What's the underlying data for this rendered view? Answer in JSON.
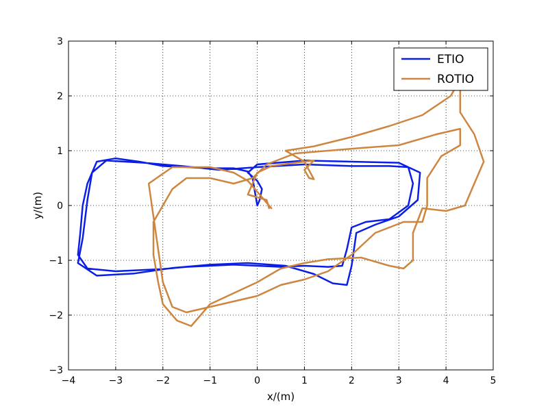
{
  "chart_data": {
    "type": "line",
    "xlabel": "x/(m)",
    "ylabel": "y/(m)",
    "xlim": [
      -4,
      5
    ],
    "ylim": [
      -3,
      3
    ],
    "x_ticks": [
      -4,
      -3,
      -2,
      -1,
      0,
      1,
      2,
      3,
      4,
      5
    ],
    "y_ticks": [
      -3,
      -2,
      -1,
      0,
      1,
      2,
      3
    ],
    "x_tick_labels": [
      "−4",
      "−3",
      "−2",
      "−1",
      "0",
      "1",
      "2",
      "3",
      "4",
      "5"
    ],
    "y_tick_labels": [
      "−3",
      "−2",
      "−1",
      "0",
      "1",
      "2",
      "3"
    ],
    "grid": true,
    "legend_position": "top-right",
    "series": [
      {
        "name": "ETIO",
        "color": "#0a1ee6",
        "points": [
          [
            0.0,
            0.0
          ],
          [
            -0.05,
            0.25
          ],
          [
            -0.1,
            0.5
          ],
          [
            -0.2,
            0.62
          ],
          [
            -0.5,
            0.68
          ],
          [
            -1.0,
            0.68
          ],
          [
            -1.5,
            0.7
          ],
          [
            -2.0,
            0.72
          ],
          [
            -2.5,
            0.8
          ],
          [
            -3.0,
            0.86
          ],
          [
            -3.4,
            0.8
          ],
          [
            -3.6,
            0.4
          ],
          [
            -3.7,
            0.0
          ],
          [
            -3.75,
            -0.5
          ],
          [
            -3.8,
            -0.9
          ],
          [
            -3.6,
            -1.15
          ],
          [
            -3.0,
            -1.2
          ],
          [
            -2.5,
            -1.18
          ],
          [
            -2.0,
            -1.16
          ],
          [
            -1.5,
            -1.12
          ],
          [
            -1.0,
            -1.1
          ],
          [
            -0.5,
            -1.08
          ],
          [
            0.0,
            -1.1
          ],
          [
            0.5,
            -1.12
          ],
          [
            1.0,
            -1.1
          ],
          [
            1.5,
            -1.12
          ],
          [
            1.8,
            -1.1
          ],
          [
            1.9,
            -0.8
          ],
          [
            2.0,
            -0.4
          ],
          [
            2.3,
            -0.3
          ],
          [
            2.8,
            -0.25
          ],
          [
            3.2,
            0.0
          ],
          [
            3.3,
            0.4
          ],
          [
            3.2,
            0.7
          ],
          [
            2.8,
            0.72
          ],
          [
            2.0,
            0.72
          ],
          [
            1.0,
            0.75
          ],
          [
            0.0,
            0.7
          ],
          [
            -0.8,
            0.65
          ],
          [
            -1.6,
            0.72
          ],
          [
            -2.4,
            0.78
          ],
          [
            -3.2,
            0.82
          ],
          [
            -3.5,
            0.6
          ],
          [
            -3.6,
            0.1
          ],
          [
            -3.7,
            -0.6
          ],
          [
            -3.8,
            -1.05
          ],
          [
            -3.4,
            -1.28
          ],
          [
            -2.6,
            -1.24
          ],
          [
            -1.8,
            -1.14
          ],
          [
            -1.0,
            -1.08
          ],
          [
            -0.2,
            -1.05
          ],
          [
            0.6,
            -1.1
          ],
          [
            1.2,
            -1.25
          ],
          [
            1.6,
            -1.42
          ],
          [
            1.9,
            -1.45
          ],
          [
            2.0,
            -1.1
          ],
          [
            2.1,
            -0.5
          ],
          [
            2.5,
            -0.35
          ],
          [
            3.0,
            -0.2
          ],
          [
            3.4,
            0.1
          ],
          [
            3.45,
            0.6
          ],
          [
            3.0,
            0.78
          ],
          [
            2.0,
            0.8
          ],
          [
            1.0,
            0.82
          ],
          [
            0.0,
            0.75
          ],
          [
            -0.2,
            0.6
          ],
          [
            0.0,
            0.45
          ],
          [
            0.1,
            0.3
          ],
          [
            0.05,
            0.1
          ],
          [
            0.0,
            0.0
          ]
        ]
      },
      {
        "name": "ROTIO",
        "color": "#cd853f",
        "points": [
          [
            0.25,
            -0.05
          ],
          [
            0.2,
            0.1
          ],
          [
            0.0,
            0.15
          ],
          [
            -0.2,
            0.2
          ],
          [
            -0.1,
            0.4
          ],
          [
            0.0,
            0.6
          ],
          [
            0.3,
            0.72
          ],
          [
            0.8,
            0.78
          ],
          [
            1.2,
            0.82
          ],
          [
            1.0,
            0.65
          ],
          [
            1.1,
            0.5
          ],
          [
            1.2,
            0.48
          ],
          [
            1.0,
            0.8
          ],
          [
            0.6,
            1.0
          ],
          [
            1.2,
            1.08
          ],
          [
            2.0,
            1.25
          ],
          [
            2.8,
            1.45
          ],
          [
            3.5,
            1.65
          ],
          [
            4.1,
            2.0
          ],
          [
            4.3,
            2.3
          ],
          [
            4.3,
            1.7
          ],
          [
            4.6,
            1.3
          ],
          [
            4.8,
            0.8
          ],
          [
            4.6,
            0.4
          ],
          [
            4.4,
            0.0
          ],
          [
            4.0,
            -0.1
          ],
          [
            3.5,
            -0.05
          ],
          [
            3.3,
            -0.5
          ],
          [
            3.3,
            -1.0
          ],
          [
            3.1,
            -1.15
          ],
          [
            2.8,
            -1.1
          ],
          [
            2.2,
            -0.95
          ],
          [
            1.5,
            -0.98
          ],
          [
            1.0,
            -1.05
          ],
          [
            0.5,
            -1.15
          ],
          [
            0.0,
            -1.4
          ],
          [
            -0.5,
            -1.6
          ],
          [
            -1.0,
            -1.8
          ],
          [
            -1.4,
            -2.2
          ],
          [
            -1.7,
            -2.1
          ],
          [
            -2.0,
            -1.8
          ],
          [
            -2.1,
            -1.4
          ],
          [
            -2.2,
            -0.9
          ],
          [
            -2.2,
            -0.3
          ],
          [
            -2.0,
            0.0
          ],
          [
            -1.8,
            0.3
          ],
          [
            -1.5,
            0.5
          ],
          [
            -1.0,
            0.5
          ],
          [
            -0.5,
            0.4
          ],
          [
            -0.1,
            0.5
          ],
          [
            0.2,
            0.75
          ],
          [
            0.8,
            0.95
          ],
          [
            1.5,
            1.0
          ],
          [
            2.2,
            1.05
          ],
          [
            3.0,
            1.1
          ],
          [
            3.8,
            1.3
          ],
          [
            4.3,
            1.4
          ],
          [
            4.3,
            1.1
          ],
          [
            3.9,
            0.9
          ],
          [
            3.6,
            0.5
          ],
          [
            3.6,
            0.0
          ],
          [
            3.5,
            -0.3
          ],
          [
            3.1,
            -0.3
          ],
          [
            2.5,
            -0.5
          ],
          [
            2.0,
            -0.9
          ],
          [
            1.5,
            -1.2
          ],
          [
            1.0,
            -1.35
          ],
          [
            0.5,
            -1.45
          ],
          [
            0.0,
            -1.65
          ],
          [
            -0.5,
            -1.75
          ],
          [
            -1.0,
            -1.85
          ],
          [
            -1.5,
            -1.95
          ],
          [
            -1.8,
            -1.85
          ],
          [
            -2.0,
            -1.4
          ],
          [
            -2.1,
            -0.8
          ],
          [
            -2.2,
            -0.2
          ],
          [
            -2.3,
            0.4
          ],
          [
            -1.8,
            0.7
          ],
          [
            -1.0,
            0.7
          ],
          [
            -0.5,
            0.6
          ],
          [
            -0.2,
            0.45
          ],
          [
            0.0,
            0.25
          ],
          [
            0.2,
            0.05
          ],
          [
            0.3,
            -0.05
          ]
        ]
      }
    ]
  }
}
